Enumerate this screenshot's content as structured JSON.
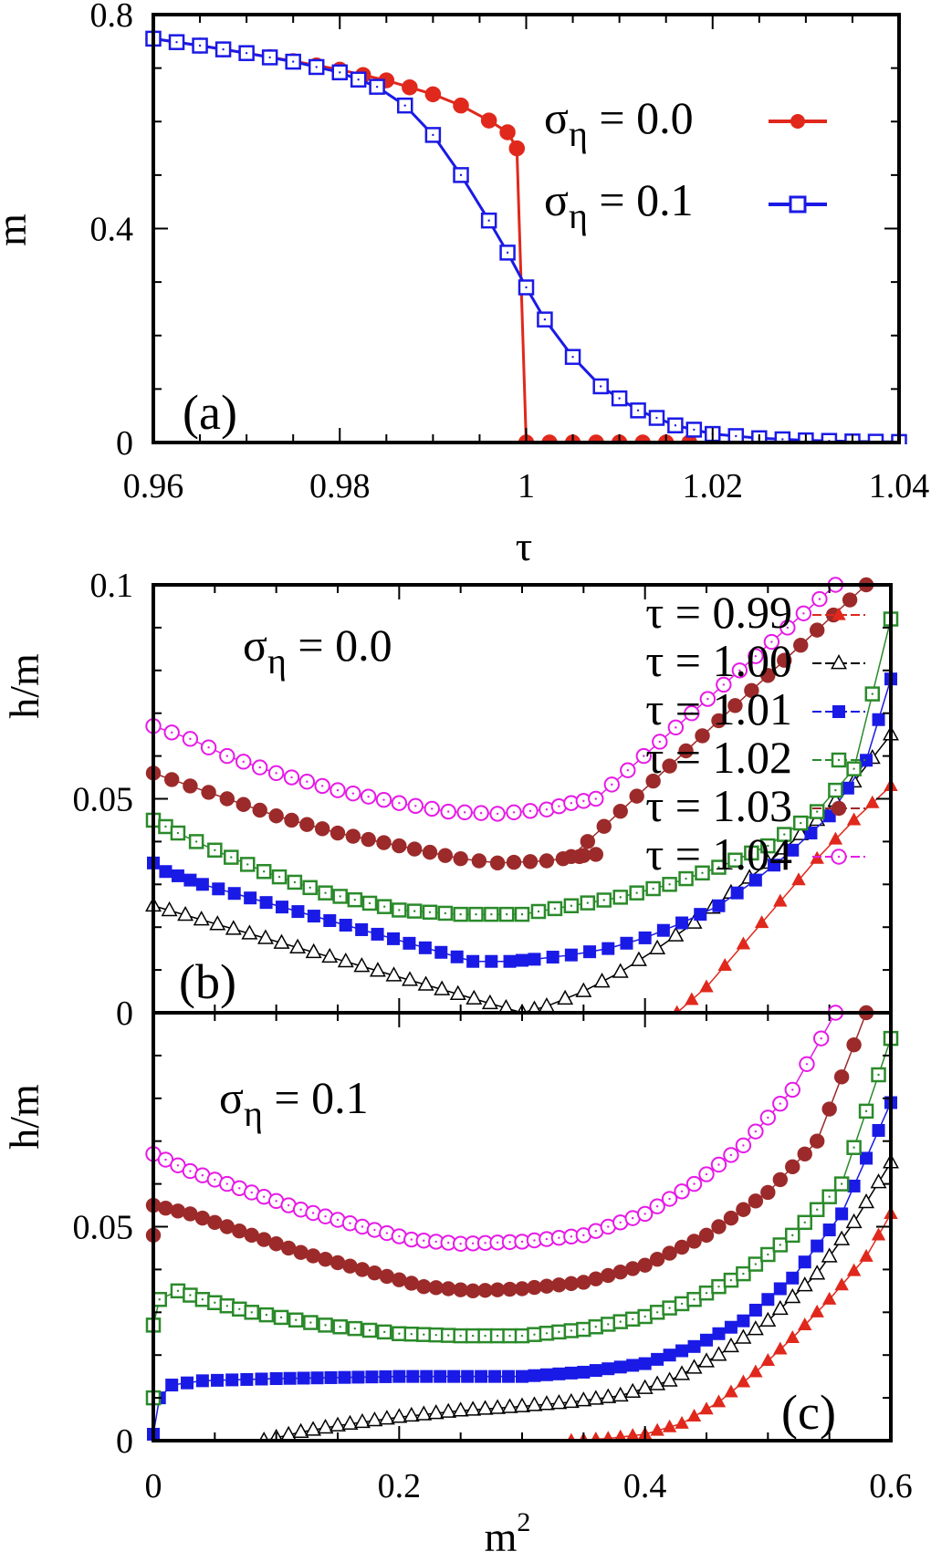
{
  "figure": {
    "colors": {
      "tau_0.99": "#e0281c",
      "tau_1.00": "#000000",
      "tau_1.01": "#1a1ae6",
      "tau_1.02": "#2a8a2a",
      "tau_1.03": "#9c2a2a",
      "tau_1.04": "#e61ae6"
    }
  },
  "chart_data": [
    {
      "id": "a",
      "type": "line",
      "panel_label": "(a)",
      "xlabel": "τ",
      "ylabel": "m",
      "xlim": [
        0.96,
        1.04
      ],
      "ylim": [
        0,
        0.8
      ],
      "xticks": [
        "0.96",
        "0.98",
        "1",
        "1.02",
        "1.04"
      ],
      "yticks": [
        "0",
        "0.4",
        "0.8"
      ],
      "legend_position": "top-right",
      "series": [
        {
          "name": "σ_η = 0.0",
          "legend_main": "σ",
          "legend_sub": "η",
          "legend_value": " = 0.0",
          "marker": "filled-circle",
          "color": "#e0281c",
          "points": [
            [
              0.96,
              0.755
            ],
            [
              0.965,
              0.742
            ],
            [
              0.97,
              0.728
            ],
            [
              0.975,
              0.713
            ],
            [
              0.98,
              0.697
            ],
            [
              0.985,
              0.677
            ],
            [
              0.99,
              0.651
            ],
            [
              0.993,
              0.63
            ],
            [
              0.996,
              0.602
            ],
            [
              0.998,
              0.58
            ],
            [
              0.999,
              0.55
            ],
            [
              1.0,
              0.0
            ],
            [
              1.005,
              0.0
            ],
            [
              1.01,
              0.0
            ],
            [
              1.015,
              0.0
            ],
            [
              1.02,
              0.0
            ]
          ]
        },
        {
          "name": "σ_η = 0.1",
          "legend_main": "σ",
          "legend_sub": "η",
          "legend_value": " = 0.1",
          "marker": "open-square",
          "color": "#1a1ae6",
          "points": [
            [
              0.96,
              0.755
            ],
            [
              0.965,
              0.742
            ],
            [
              0.97,
              0.728
            ],
            [
              0.975,
              0.712
            ],
            [
              0.98,
              0.692
            ],
            [
              0.984,
              0.665
            ],
            [
              0.987,
              0.63
            ],
            [
              0.99,
              0.575
            ],
            [
              0.993,
              0.5
            ],
            [
              0.996,
              0.415
            ],
            [
              0.998,
              0.355
            ],
            [
              1.0,
              0.29
            ],
            [
              1.002,
              0.23
            ],
            [
              1.005,
              0.16
            ],
            [
              1.008,
              0.105
            ],
            [
              1.012,
              0.06
            ],
            [
              1.016,
              0.032
            ],
            [
              1.02,
              0.016
            ],
            [
              1.025,
              0.008
            ],
            [
              1.03,
              0.004
            ],
            [
              1.035,
              0.002
            ],
            [
              1.04,
              0.001
            ]
          ]
        }
      ]
    },
    {
      "id": "b",
      "type": "line",
      "panel_label": "(b)",
      "sigma_main": "σ",
      "sigma_sub": "η",
      "sigma_value": " = 0.0",
      "ylabel": "h/m",
      "xlim": [
        0,
        0.6
      ],
      "ylim": [
        0,
        0.1
      ],
      "yticks": [
        "0",
        "0.05",
        "0.1"
      ],
      "legend_position": "top-right",
      "series": [
        {
          "name": "τ = 0.99",
          "marker": "filled-triangle",
          "color": "#e0281c",
          "points": [
            [
              0.426,
              0.0
            ],
            [
              0.45,
              0.006
            ],
            [
              0.48,
              0.016
            ],
            [
              0.51,
              0.026
            ],
            [
              0.54,
              0.036
            ],
            [
              0.57,
              0.045
            ],
            [
              0.6,
              0.053
            ]
          ]
        },
        {
          "name": "τ = 1.00",
          "marker": "open-triangle",
          "color": "#000000",
          "points": [
            [
              0.0,
              0.025
            ],
            [
              0.3,
              0.0
            ],
            [
              0.32,
              0.0015
            ],
            [
              0.35,
              0.005
            ],
            [
              0.38,
              0.0095
            ],
            [
              0.41,
              0.015
            ],
            [
              0.44,
              0.021
            ],
            [
              0.47,
              0.028
            ],
            [
              0.5,
              0.035
            ],
            [
              0.54,
              0.045
            ],
            [
              0.57,
              0.054
            ],
            [
              0.6,
              0.065
            ]
          ]
        },
        {
          "name": "τ = 1.01",
          "marker": "filled-square",
          "color": "#1a1ae6",
          "points": [
            [
              0.0,
              0.035
            ],
            [
              0.01,
              0.033
            ],
            [
              0.02,
              0.032
            ],
            [
              0.04,
              0.03
            ],
            [
              0.26,
              0.012
            ],
            [
              0.29,
              0.012
            ],
            [
              0.31,
              0.0125
            ],
            [
              0.34,
              0.0135
            ],
            [
              0.37,
              0.015
            ],
            [
              0.4,
              0.0175
            ],
            [
              0.43,
              0.021
            ],
            [
              0.46,
              0.025
            ],
            [
              0.49,
              0.031
            ],
            [
              0.52,
              0.038
            ],
            [
              0.55,
              0.046
            ],
            [
              0.58,
              0.059
            ],
            [
              0.6,
              0.078
            ]
          ]
        },
        {
          "name": "τ = 1.02",
          "marker": "open-square",
          "color": "#2a8a2a",
          "points": [
            [
              0.0,
              0.045
            ],
            [
              0.02,
              0.042
            ],
            [
              0.05,
              0.038
            ],
            [
              0.09,
              0.033
            ],
            [
              0.14,
              0.028
            ],
            [
              0.2,
              0.024
            ],
            [
              0.25,
              0.023
            ],
            [
              0.3,
              0.023
            ],
            [
              0.34,
              0.025
            ],
            [
              0.38,
              0.027
            ],
            [
              0.42,
              0.03
            ],
            [
              0.46,
              0.034
            ],
            [
              0.5,
              0.039
            ],
            [
              0.54,
              0.047
            ],
            [
              0.57,
              0.057
            ],
            [
              0.6,
              0.092
            ]
          ]
        },
        {
          "name": "τ = 1.03",
          "marker": "filled-circle",
          "color": "#9c2a2a",
          "points": [
            [
              0.0,
              0.056
            ],
            [
              0.03,
              0.053
            ],
            [
              0.06,
              0.05
            ],
            [
              0.1,
              0.046
            ],
            [
              0.15,
              0.042
            ],
            [
              0.2,
              0.039
            ],
            [
              0.25,
              0.036
            ],
            [
              0.28,
              0.035
            ],
            [
              0.32,
              0.0355
            ],
            [
              0.36,
              0.037
            ],
            [
              0.34,
              0.0365
            ],
            [
              0.58,
              0.1
            ]
          ]
        },
        {
          "name": "τ = 1.04",
          "marker": "open-circle",
          "color": "#e61ae6",
          "points": [
            [
              0.0,
              0.067
            ],
            [
              0.03,
              0.064
            ],
            [
              0.06,
              0.06
            ],
            [
              0.1,
              0.056
            ],
            [
              0.15,
              0.052
            ],
            [
              0.2,
              0.049
            ],
            [
              0.24,
              0.047
            ],
            [
              0.28,
              0.0465
            ],
            [
              0.32,
              0.0475
            ],
            [
              0.34,
              0.049
            ],
            [
              0.36,
              0.05
            ],
            [
              0.555,
              0.1
            ]
          ]
        }
      ]
    },
    {
      "id": "c",
      "type": "line",
      "panel_label": "(c)",
      "sigma_main": "σ",
      "sigma_sub": "η",
      "sigma_value": " = 0.1",
      "xlabel": "m",
      "xlabel_sup": "2",
      "ylabel": "h/m",
      "xlim": [
        0,
        0.6
      ],
      "ylim": [
        0,
        0.1
      ],
      "xticks": [
        "0",
        "0.2",
        "0.4",
        "0.6"
      ],
      "yticks": [
        "0",
        "0.05"
      ],
      "series": [
        {
          "name": "τ = 0.99",
          "marker": "filled-triangle",
          "color": "#e0281c",
          "points": [
            [
              0.34,
              0.0
            ],
            [
              0.37,
              0.0005
            ],
            [
              0.4,
              0.0015
            ],
            [
              0.43,
              0.004
            ],
            [
              0.46,
              0.009
            ],
            [
              0.49,
              0.016
            ],
            [
              0.52,
              0.024
            ],
            [
              0.55,
              0.033
            ],
            [
              0.58,
              0.043
            ],
            [
              0.6,
              0.053
            ]
          ]
        },
        {
          "name": "τ = 1.00",
          "marker": "open-triangle",
          "color": "#000000",
          "points": [
            [
              0.09,
              0.0
            ],
            [
              0.12,
              0.002
            ],
            [
              0.15,
              0.0035
            ],
            [
              0.2,
              0.0055
            ],
            [
              0.25,
              0.007
            ],
            [
              0.3,
              0.008
            ],
            [
              0.34,
              0.009
            ],
            [
              0.38,
              0.0105
            ],
            [
              0.42,
              0.014
            ],
            [
              0.46,
              0.02
            ],
            [
              0.5,
              0.028
            ],
            [
              0.54,
              0.039
            ],
            [
              0.57,
              0.051
            ],
            [
              0.6,
              0.065
            ]
          ]
        },
        {
          "name": "τ = 1.01",
          "marker": "filled-square",
          "color": "#1a1ae6",
          "points": [
            [
              0.0,
              0.0015
            ],
            [
              0.005,
              0.01
            ],
            [
              0.015,
              0.013
            ],
            [
              0.04,
              0.014
            ],
            [
              0.1,
              0.0145
            ],
            [
              0.2,
              0.015
            ],
            [
              0.3,
              0.015
            ],
            [
              0.35,
              0.016
            ],
            [
              0.4,
              0.018
            ],
            [
              0.44,
              0.022
            ],
            [
              0.48,
              0.028
            ],
            [
              0.52,
              0.038
            ],
            [
              0.56,
              0.053
            ],
            [
              0.6,
              0.079
            ]
          ]
        },
        {
          "name": "τ = 1.02",
          "marker": "open-square",
          "color": "#2a8a2a",
          "points": [
            [
              0.0,
              0.01
            ],
            [
              0.0,
              0.027
            ],
            [
              0.005,
              0.033
            ],
            [
              0.02,
              0.035
            ],
            [
              0.04,
              0.033
            ],
            [
              0.08,
              0.03
            ],
            [
              0.14,
              0.027
            ],
            [
              0.2,
              0.025
            ],
            [
              0.25,
              0.0245
            ],
            [
              0.3,
              0.0245
            ],
            [
              0.35,
              0.026
            ],
            [
              0.4,
              0.029
            ],
            [
              0.44,
              0.033
            ],
            [
              0.48,
              0.039
            ],
            [
              0.52,
              0.048
            ],
            [
              0.56,
              0.06
            ],
            [
              0.6,
              0.094
            ]
          ]
        },
        {
          "name": "τ = 1.03",
          "marker": "filled-circle",
          "color": "#9c2a2a",
          "points": [
            [
              0.0,
              0.048
            ],
            [
              0.0,
              0.055
            ],
            [
              0.03,
              0.053
            ],
            [
              0.07,
              0.049
            ],
            [
              0.12,
              0.044
            ],
            [
              0.17,
              0.04
            ],
            [
              0.22,
              0.036
            ],
            [
              0.26,
              0.035
            ],
            [
              0.3,
              0.0355
            ],
            [
              0.35,
              0.037
            ],
            [
              0.4,
              0.041
            ],
            [
              0.45,
              0.048
            ],
            [
              0.5,
              0.058
            ],
            [
              0.54,
              0.07
            ],
            [
              0.58,
              0.1
            ]
          ]
        },
        {
          "name": "τ = 1.04",
          "marker": "open-circle",
          "color": "#e61ae6",
          "points": [
            [
              0.0,
              0.067
            ],
            [
              0.03,
              0.063
            ],
            [
              0.07,
              0.059
            ],
            [
              0.12,
              0.054
            ],
            [
              0.17,
              0.05
            ],
            [
              0.21,
              0.047
            ],
            [
              0.25,
              0.046
            ],
            [
              0.3,
              0.0465
            ],
            [
              0.35,
              0.048
            ],
            [
              0.4,
              0.053
            ],
            [
              0.44,
              0.06
            ],
            [
              0.48,
              0.069
            ],
            [
              0.52,
              0.082
            ],
            [
              0.555,
              0.1
            ]
          ]
        }
      ]
    }
  ]
}
